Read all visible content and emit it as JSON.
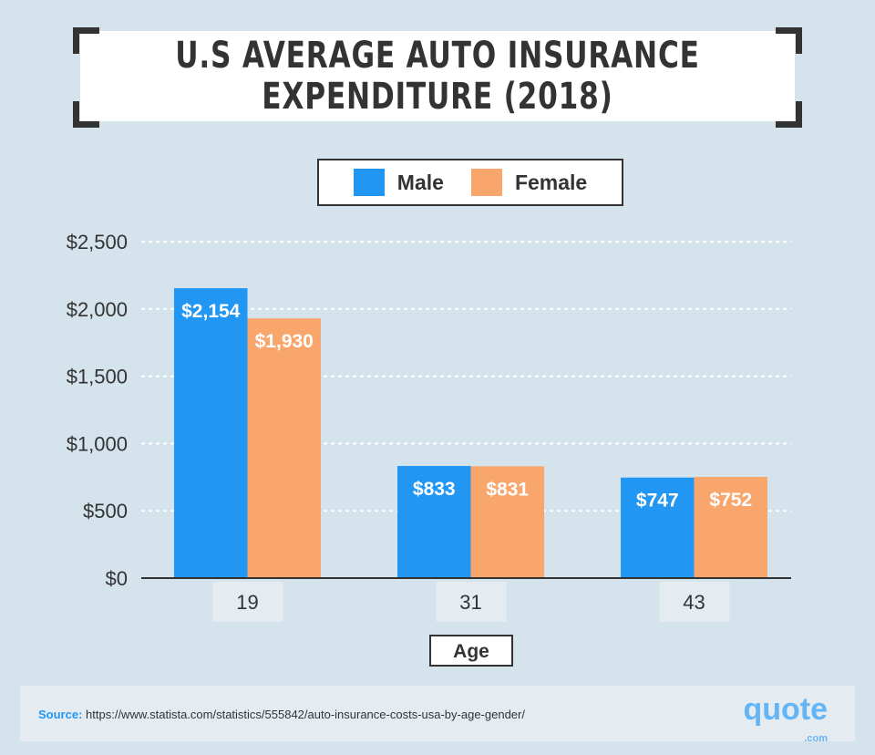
{
  "title": "U.S AVERAGE AUTO INSURANCE\nEXPENDITURE (2018)",
  "colors": {
    "male": "#2196f3",
    "female": "#f9a66c",
    "background": "#d5e3ec",
    "text": "#333333"
  },
  "chart_data": {
    "type": "bar",
    "title": "U.S AVERAGE AUTO INSURANCE EXPENDITURE (2018)",
    "categories": [
      "19",
      "31",
      "43"
    ],
    "series": [
      {
        "name": "Male",
        "values": [
          2154,
          833,
          747
        ],
        "labels": [
          "$2,154",
          "$833",
          "$747"
        ]
      },
      {
        "name": "Female",
        "values": [
          1930,
          831,
          752
        ],
        "labels": [
          "$1,930",
          "$831",
          "$752"
        ]
      }
    ],
    "xlabel": "Age",
    "ylabel": "",
    "ylim": [
      0,
      2500
    ],
    "yticks": [
      "$0",
      "$500",
      "$1,000",
      "$1,500",
      "$2,000",
      "$2,500"
    ],
    "grid": true,
    "legend": "top-center"
  },
  "footer": {
    "source_label": "Source:",
    "source_url": "https://www.statista.com/statistics/555842/auto-insurance-costs-usa-by-age-gender/",
    "logo": "quote.com"
  }
}
